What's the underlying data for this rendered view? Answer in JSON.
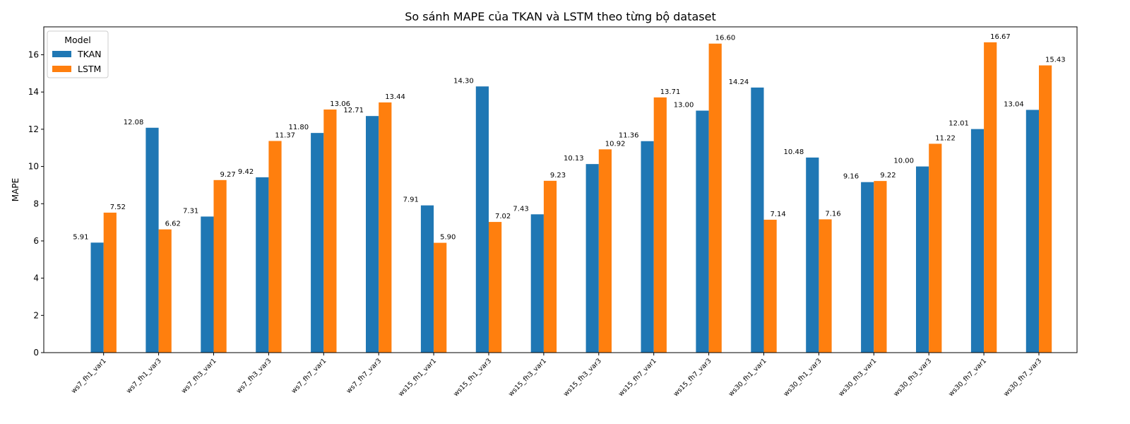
{
  "chart_data": {
    "type": "bar",
    "title": "So sánh MAPE của TKAN và LSTM theo từng bộ dataset",
    "xlabel": "",
    "ylabel": "MAPE",
    "ylim": [
      0,
      17.5
    ],
    "yticks": [
      0,
      2,
      4,
      6,
      8,
      10,
      12,
      14,
      16
    ],
    "grid": false,
    "legend": {
      "title": "Model",
      "placement": "top-left"
    },
    "categories": [
      "ws7_fh1_var1",
      "ws7_fh1_var3",
      "ws7_fh3_var1",
      "ws7_fh3_var3",
      "ws7_fh7_var1",
      "ws7_fh7_var3",
      "ws15_fh1_var1",
      "ws15_fh1_var3",
      "ws15_fh3_var1",
      "ws15_fh3_var3",
      "ws15_fh7_var1",
      "ws15_fh7_var3",
      "ws30_fh1_var1",
      "ws30_fh1_var3",
      "ws30_fh3_var1",
      "ws30_fh3_var3",
      "ws30_fh7_var1",
      "ws30_fh7_var3"
    ],
    "series": [
      {
        "name": "TKAN",
        "color": "#1f77b4",
        "values": [
          5.91,
          12.08,
          7.31,
          9.42,
          11.8,
          12.71,
          7.91,
          14.3,
          7.43,
          10.13,
          11.36,
          13.0,
          14.24,
          10.48,
          9.16,
          10.0,
          12.01,
          13.04
        ]
      },
      {
        "name": "LSTM",
        "color": "#ff7f0e",
        "values": [
          7.52,
          6.62,
          9.27,
          11.37,
          13.06,
          13.44,
          5.9,
          7.02,
          9.23,
          10.92,
          13.71,
          16.6,
          7.14,
          7.16,
          9.22,
          11.22,
          16.67,
          15.43
        ]
      }
    ]
  }
}
